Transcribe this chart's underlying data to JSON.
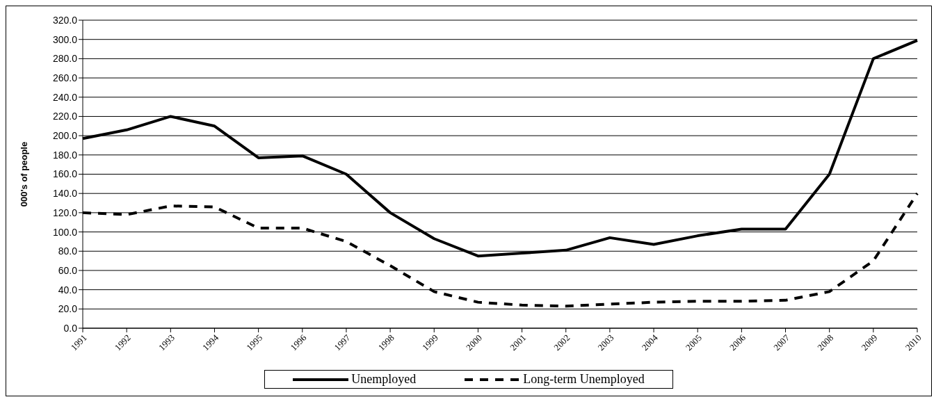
{
  "chart_data": {
    "type": "line",
    "ylabel": "000's of people",
    "categories": [
      "1991",
      "1992",
      "1993",
      "1994",
      "1995",
      "1996",
      "1997",
      "1998",
      "1999",
      "2000",
      "2001",
      "2002",
      "2003",
      "2004",
      "2005",
      "2006",
      "2007",
      "2008",
      "2009",
      "2010"
    ],
    "series": [
      {
        "name": "Unemployed",
        "color": "#000000",
        "line_style": "solid",
        "values": [
          197,
          206,
          220,
          210,
          177,
          179,
          160,
          120,
          93,
          75,
          78,
          81,
          94,
          87,
          96,
          103,
          103,
          160,
          280,
          299
        ]
      },
      {
        "name": "Long-term Unemployed",
        "color": "#000000",
        "line_style": "dashed",
        "values": [
          120,
          118,
          127,
          126,
          104,
          104,
          90,
          65,
          38,
          27,
          24,
          23,
          25,
          27,
          28,
          28,
          29,
          38,
          70,
          140
        ]
      }
    ],
    "ylim": [
      0,
      320
    ],
    "yticks": [
      {
        "value": 0,
        "label": "0.0"
      },
      {
        "value": 20,
        "label": "20.0"
      },
      {
        "value": 40,
        "label": "40.0"
      },
      {
        "value": 60,
        "label": "60.0"
      },
      {
        "value": 80,
        "label": "80.0"
      },
      {
        "value": 100,
        "label": "100.0"
      },
      {
        "value": 120,
        "label": "120.0"
      },
      {
        "value": 140,
        "label": "140.0"
      },
      {
        "value": 160,
        "label": "160.0"
      },
      {
        "value": 180,
        "label": "180.0"
      },
      {
        "value": 200,
        "label": "200.0"
      },
      {
        "value": 220,
        "label": "220.0"
      },
      {
        "value": 240,
        "label": "240.0"
      },
      {
        "value": 260,
        "label": "260.0"
      },
      {
        "value": 280,
        "label": "280.0"
      },
      {
        "value": 300,
        "label": "300.0"
      },
      {
        "value": 320,
        "label": "320.0"
      }
    ],
    "grid": "y",
    "legend": "bottom",
    "marker": "none"
  }
}
